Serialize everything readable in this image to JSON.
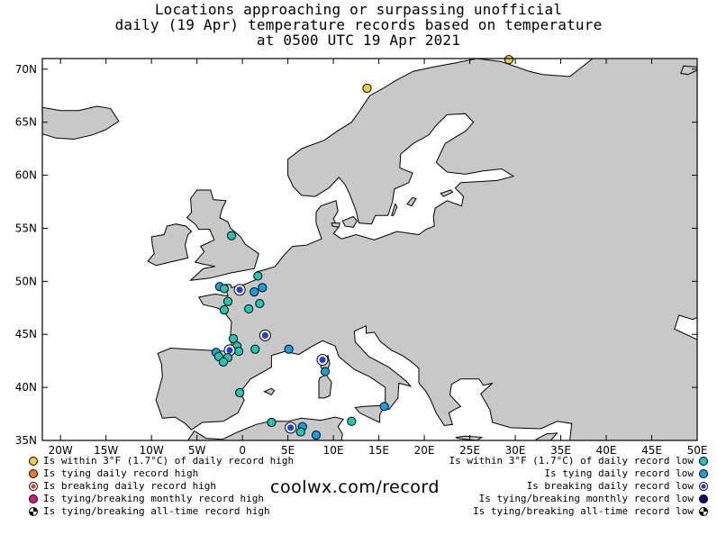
{
  "title": {
    "line1": "Locations approaching or surpassing unofficial",
    "line2": "daily (19 Apr) temperature records based on temperature",
    "line3": "at 0500 UTC 19 Apr 2021"
  },
  "map": {
    "lon_range": [
      -22,
      50
    ],
    "lat_range": [
      35,
      71
    ],
    "lon_ticks": [
      "20W",
      "15W",
      "10W",
      "5W",
      "0",
      "5E",
      "10E",
      "15E",
      "20E",
      "25E",
      "30E",
      "35E",
      "40E",
      "45E",
      "50E"
    ],
    "lat_ticks": [
      "35N",
      "40N",
      "45N",
      "50N",
      "55N",
      "60N",
      "65N",
      "70N"
    ],
    "land_color": "#c8c8c8",
    "sea_color": "#ffffff"
  },
  "colors": {
    "near_high": "#e8d23c",
    "tie_high": "#f07d10",
    "break_high": "#e83c28",
    "monthly_high": "#e0147c",
    "near_low": "#1ec8b4",
    "tie_low": "#14a0e6",
    "break_low": "#1e3cf0",
    "monthly_low": "#0a0a78"
  },
  "stations": [
    {
      "lon": 13.7,
      "lat": 68.2,
      "cat": "near_high"
    },
    {
      "lon": 29.3,
      "lat": 70.9,
      "cat": "near_high"
    },
    {
      "lon": -1.2,
      "lat": 54.3,
      "cat": "near_low"
    },
    {
      "lon": 1.7,
      "lat": 50.5,
      "cat": "near_low"
    },
    {
      "lon": -2.5,
      "lat": 49.5,
      "cat": "tie_low"
    },
    {
      "lon": -2.0,
      "lat": 49.3,
      "cat": "near_low"
    },
    {
      "lon": -0.3,
      "lat": 49.2,
      "cat": "break_low"
    },
    {
      "lon": 1.3,
      "lat": 49.0,
      "cat": "tie_low"
    },
    {
      "lon": 2.2,
      "lat": 49.4,
      "cat": "tie_low"
    },
    {
      "lon": -1.6,
      "lat": 48.1,
      "cat": "near_low"
    },
    {
      "lon": 1.9,
      "lat": 47.9,
      "cat": "near_low"
    },
    {
      "lon": 0.7,
      "lat": 47.4,
      "cat": "near_low"
    },
    {
      "lon": -2.0,
      "lat": 47.3,
      "cat": "near_low"
    },
    {
      "lon": 2.5,
      "lat": 44.9,
      "cat": "break_low"
    },
    {
      "lon": -1.0,
      "lat": 44.6,
      "cat": "near_low"
    },
    {
      "lon": -0.6,
      "lat": 43.9,
      "cat": "near_low"
    },
    {
      "lon": 1.4,
      "lat": 43.6,
      "cat": "near_low"
    },
    {
      "lon": -0.4,
      "lat": 43.4,
      "cat": "near_low"
    },
    {
      "lon": -1.4,
      "lat": 43.5,
      "cat": "break_low"
    },
    {
      "lon": -2.9,
      "lat": 43.3,
      "cat": "tie_low"
    },
    {
      "lon": -2.6,
      "lat": 42.9,
      "cat": "near_low"
    },
    {
      "lon": -1.6,
      "lat": 42.8,
      "cat": "near_low"
    },
    {
      "lon": -2.1,
      "lat": 42.4,
      "cat": "near_low"
    },
    {
      "lon": 5.1,
      "lat": 43.6,
      "cat": "tie_low"
    },
    {
      "lon": 8.8,
      "lat": 42.6,
      "cat": "break_low"
    },
    {
      "lon": 9.1,
      "lat": 41.5,
      "cat": "tie_low"
    },
    {
      "lon": -0.3,
      "lat": 39.5,
      "cat": "near_low"
    },
    {
      "lon": 15.6,
      "lat": 38.2,
      "cat": "tie_low"
    },
    {
      "lon": 12.0,
      "lat": 36.8,
      "cat": "near_low"
    },
    {
      "lon": 3.2,
      "lat": 36.7,
      "cat": "near_low"
    },
    {
      "lon": 5.3,
      "lat": 36.2,
      "cat": "break_low"
    },
    {
      "lon": 6.6,
      "lat": 36.3,
      "cat": "tie_low"
    },
    {
      "lon": 6.4,
      "lat": 35.8,
      "cat": "near_low"
    },
    {
      "lon": 8.1,
      "lat": 35.5,
      "cat": "tie_low"
    }
  ],
  "legend_left": [
    {
      "label": "Is within 3°F (1.7°C) of daily record high",
      "cat": "near_high"
    },
    {
      "label": "Is tying daily record high",
      "cat": "tie_high"
    },
    {
      "label": "Is breaking daily record high",
      "cat": "break_high"
    },
    {
      "label": "Is tying/breaking monthly record high",
      "cat": "monthly_high"
    },
    {
      "label": "Is tying/breaking all-time record high",
      "cat": "alltime"
    }
  ],
  "legend_right": [
    {
      "label": "Is within 3°F (1.7°C) of daily record low",
      "cat": "near_low"
    },
    {
      "label": "Is tying daily record low",
      "cat": "tie_low"
    },
    {
      "label": "Is breaking daily record low",
      "cat": "break_low"
    },
    {
      "label": "Is tying/breaking monthly record low",
      "cat": "monthly_low"
    },
    {
      "label": "Is tying/breaking all-time record low",
      "cat": "alltime"
    }
  ],
  "credit": "coolwx.com/record"
}
